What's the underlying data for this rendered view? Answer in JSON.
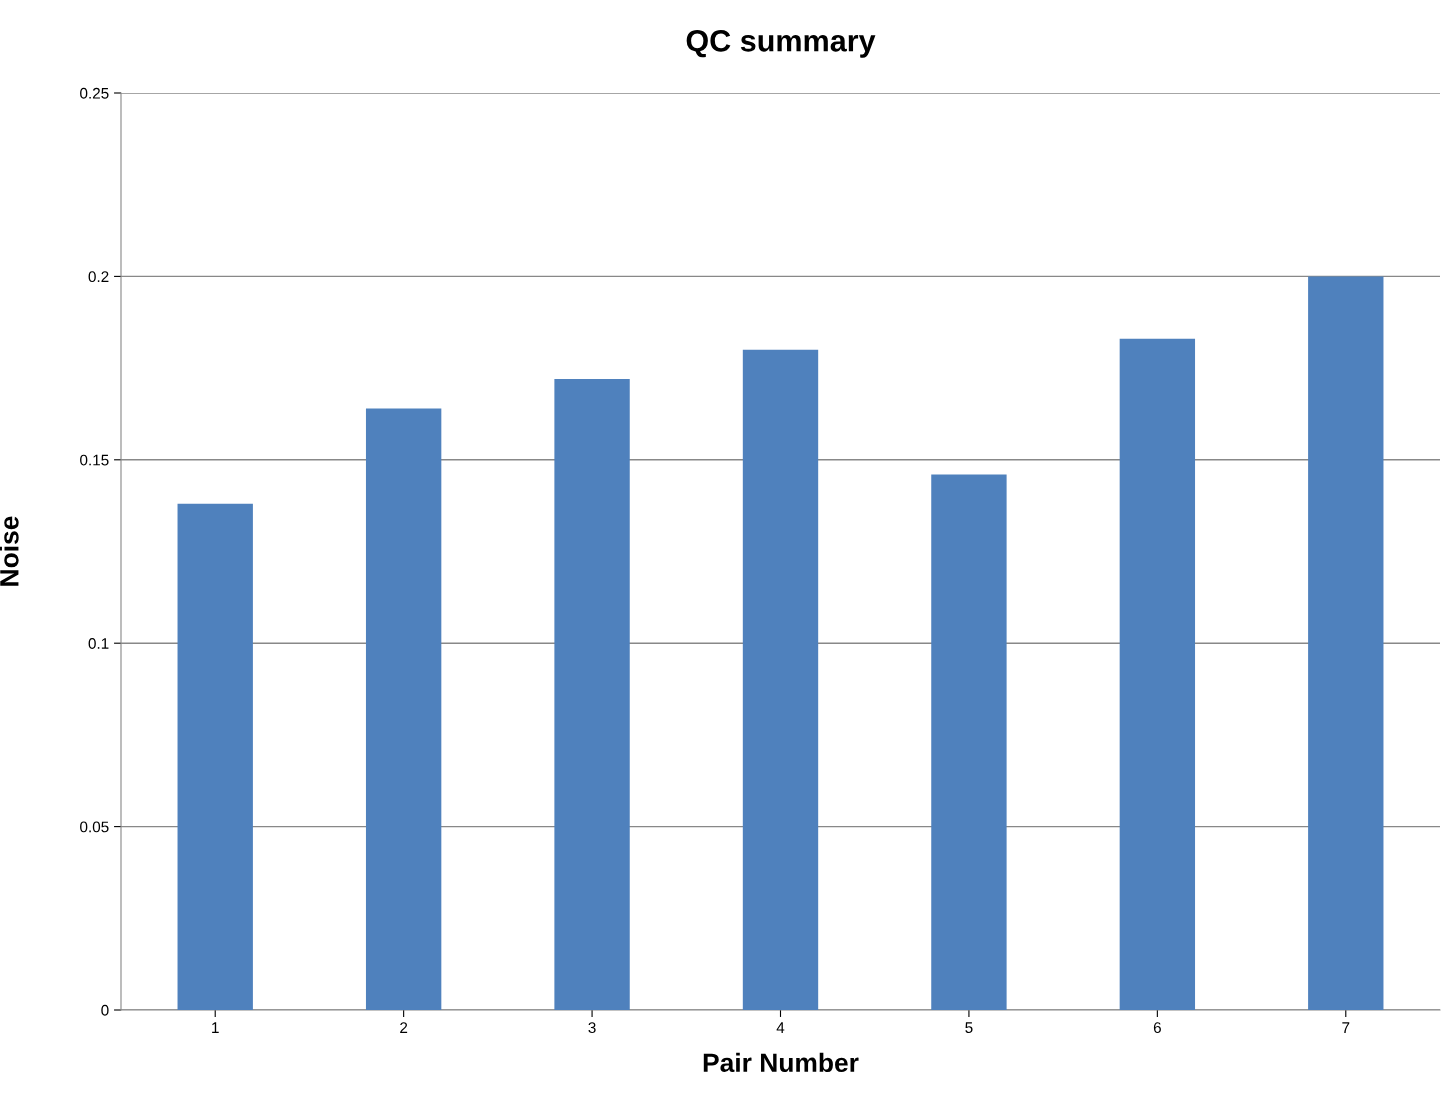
{
  "chart_data": {
    "type": "bar",
    "title": "QC summary",
    "xlabel": "Pair Number",
    "ylabel": "Noise",
    "categories": [
      "1",
      "2",
      "3",
      "4",
      "5",
      "6",
      "7"
    ],
    "values": [
      0.138,
      0.164,
      0.172,
      0.18,
      0.146,
      0.183,
      0.2
    ],
    "color": "#4f81bd",
    "ylim": [
      0,
      0.25
    ],
    "yticks": [
      0,
      0.05,
      0.1,
      0.15,
      0.2,
      0.25
    ],
    "grid": "y",
    "legend": false
  }
}
